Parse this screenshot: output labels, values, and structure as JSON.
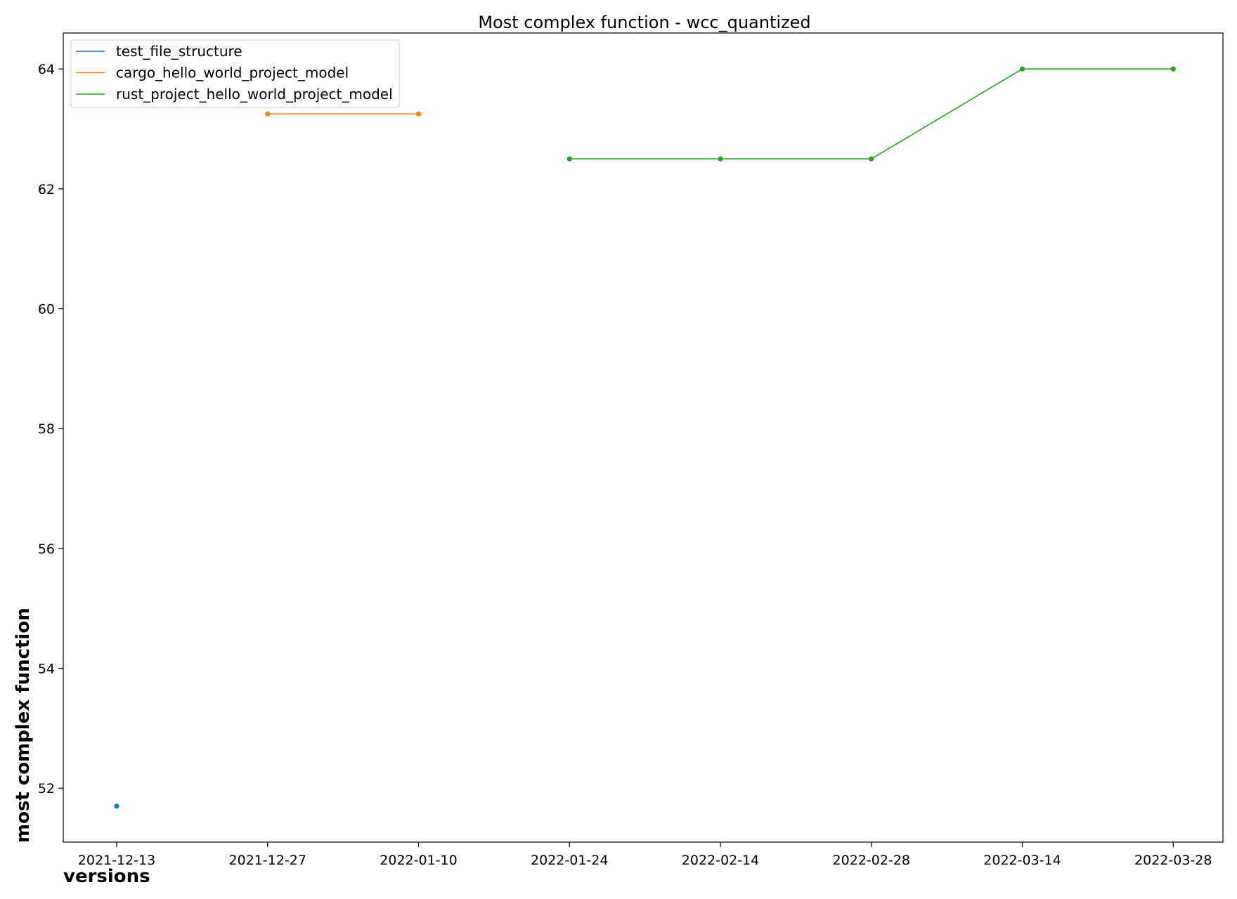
{
  "chart_data": {
    "type": "line",
    "title": "Most complex function - wcc_quantized",
    "xlabel": "versions",
    "ylabel": "most complex function",
    "categories": [
      "2021-12-13",
      "2021-12-27",
      "2022-01-10",
      "2022-01-24",
      "2022-02-14",
      "2022-02-28",
      "2022-03-14",
      "2022-03-28"
    ],
    "ylim": [
      51.1,
      64.6
    ],
    "yticks": [
      52,
      54,
      56,
      58,
      60,
      62,
      64
    ],
    "grid": false,
    "legend_position": "upper-left",
    "series": [
      {
        "name": "test_file_structure",
        "color": "#1f77b4",
        "points": [
          {
            "x": "2021-12-13",
            "y": 51.7
          }
        ]
      },
      {
        "name": "cargo_hello_world_project_model",
        "color": "#ff7f0e",
        "points": [
          {
            "x": "2021-12-27",
            "y": 63.25
          },
          {
            "x": "2022-01-10",
            "y": 63.25
          }
        ]
      },
      {
        "name": "rust_project_hello_world_project_model",
        "color": "#2ca02c",
        "points": [
          {
            "x": "2022-01-24",
            "y": 62.5
          },
          {
            "x": "2022-02-14",
            "y": 62.5
          },
          {
            "x": "2022-02-28",
            "y": 62.5
          },
          {
            "x": "2022-03-14",
            "y": 64.0
          },
          {
            "x": "2022-03-28",
            "y": 64.0
          }
        ]
      }
    ]
  }
}
